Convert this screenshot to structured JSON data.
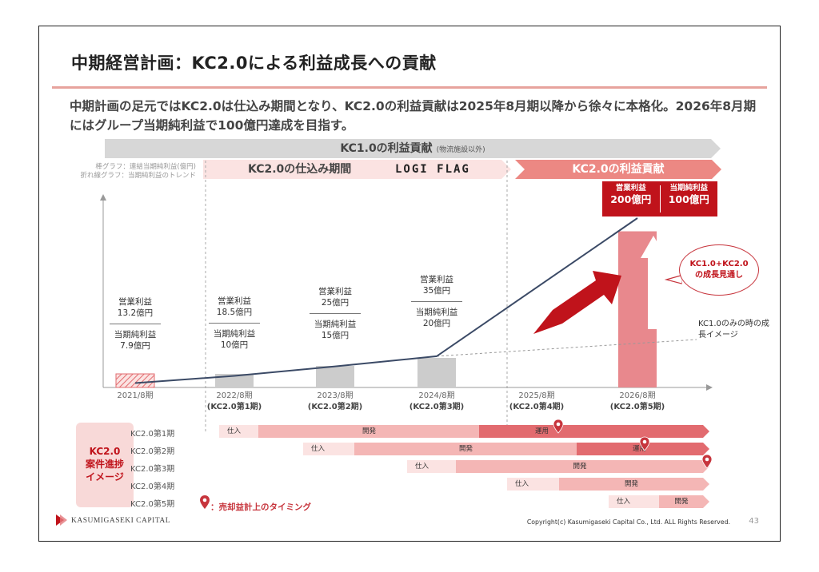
{
  "title": "中期経営計画：KC2.0による利益成長への貢献",
  "lead": "中期計画の足元ではKC2.0は仕込み期間となり、KC2.0の利益貢献は2025年8月期以降から徐々に本格化。2026年8月期にはグループ当期純利益で100億円達成を目指す。",
  "legend": {
    "bar": "棒グラフ：連結当期純利益(億円)",
    "line": "折れ線グラフ：当期純利益のトレンド"
  },
  "phases": {
    "kc1_label": "KC1.0の利益貢献",
    "kc1_note": "(物流施設以外)",
    "prep_label": "KC2.0の仕込み期間",
    "logi_flag": "LOGI FLAG",
    "contrib_label": "KC2.0の利益貢献"
  },
  "target_callout": {
    "op_label": "営業利益",
    "op_value": "200億円",
    "net_label": "当期純利益",
    "net_value": "100億円"
  },
  "bubble_text": "KC1.0+KC2.0の成長見通し",
  "kc1_only_note": "KC1.0のみの時の成長イメージ",
  "chart_data": {
    "type": "bar",
    "categories": [
      "2021/8期",
      "2022/8期",
      "2023/8期",
      "2024/8期",
      "2025/8期",
      "2026/8期"
    ],
    "sublabels": [
      "",
      "(KC2.0第1期)",
      "(KC2.0第2期)",
      "(KC2.0第3期)",
      "(KC2.0第4期)",
      "(KC2.0第5期)"
    ],
    "series": [
      {
        "name": "",
        "values": [
          7.9,
          10,
          15,
          20,
          null,
          100
        ]
      }
    ],
    "trend_line": [
      7.9,
      10,
      15,
      20,
      60,
      100
    ],
    "ylim": [
      0,
      110
    ],
    "bar_labels": [
      {
        "op": "営業利益\n13.2億円",
        "net": "当期純利益\n7.9億円"
      },
      {
        "op": "営業利益\n18.5億円",
        "net": "当期純利益\n10億円"
      },
      {
        "op": "営業利益\n25億円",
        "net": "当期純利益\n15億円"
      },
      {
        "op": "営業利益\n35億円",
        "net": "当期純利益\n20億円"
      }
    ],
    "colors": {
      "actual": "#e26b6f",
      "plan": "#cccccc",
      "target": "#e8888d",
      "line": "#3b4a66",
      "accent": "#c0131b"
    }
  },
  "progress": {
    "box_label_1": "KC2.0",
    "box_label_2": "案件進捗",
    "box_label_3": "イメージ",
    "rows": [
      {
        "name": "KC2.0第1期",
        "s1": "仕入",
        "s2": "開発",
        "s3": "運用"
      },
      {
        "name": "KC2.0第2期",
        "s1": "仕入",
        "s2": "開発",
        "s3": "運用"
      },
      {
        "name": "KC2.0第3期",
        "s1": "仕入",
        "s2": "開発"
      },
      {
        "name": "KC2.0第4期",
        "s1": "仕入",
        "s2": "開発"
      },
      {
        "name": "KC2.0第5期",
        "s1": "仕入",
        "s2": "開発"
      }
    ],
    "pin_note": "：売却益計上のタイミング"
  },
  "footer": {
    "logo": "KASUMIGASEKI CAPITAL",
    "copyright": "Copyright(c) Kasumigaseki Capital Co., Ltd. ALL Rights Reserved.",
    "page": "43"
  }
}
